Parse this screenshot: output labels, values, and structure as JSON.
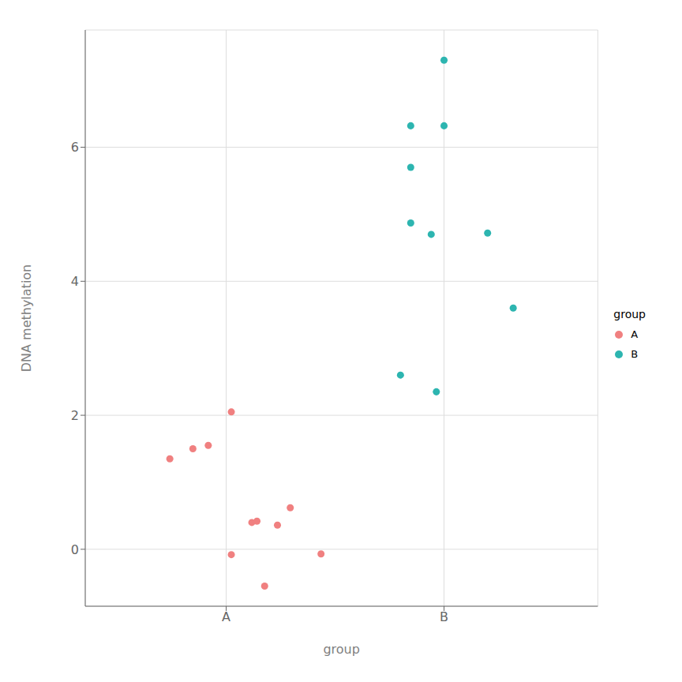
{
  "chart_data": {
    "type": "scatter",
    "xlabel": "group",
    "ylabel": "DNA methylation",
    "legend_title": "group",
    "series": [
      {
        "name": "A",
        "color": "#F08080",
        "x": [
          0.78,
          0.87,
          0.93,
          1.02,
          1.02,
          1.1,
          1.12,
          1.15,
          1.2,
          1.25,
          1.37
        ],
        "values": [
          1.35,
          1.5,
          1.55,
          2.05,
          -0.08,
          0.4,
          0.42,
          -0.55,
          0.36,
          0.62,
          -0.07
        ]
      },
      {
        "name": "B",
        "color": "#2DB5B0",
        "x": [
          1.68,
          1.82,
          1.72,
          1.8,
          2.02,
          1.72,
          1.72,
          1.85,
          1.85,
          2.12
        ],
        "values": [
          2.6,
          2.35,
          4.87,
          4.7,
          4.72,
          5.7,
          6.32,
          6.32,
          7.3,
          3.6
        ]
      }
    ],
    "xlim": [
      0.45,
      2.45
    ],
    "xticks": [
      {
        "value": 1.0,
        "label": "A"
      },
      {
        "value": 1.85,
        "label": "B"
      }
    ],
    "ylim": [
      -0.85,
      7.75
    ],
    "yticks": [
      0,
      2,
      4,
      6
    ],
    "grid": true,
    "legend": "right"
  }
}
